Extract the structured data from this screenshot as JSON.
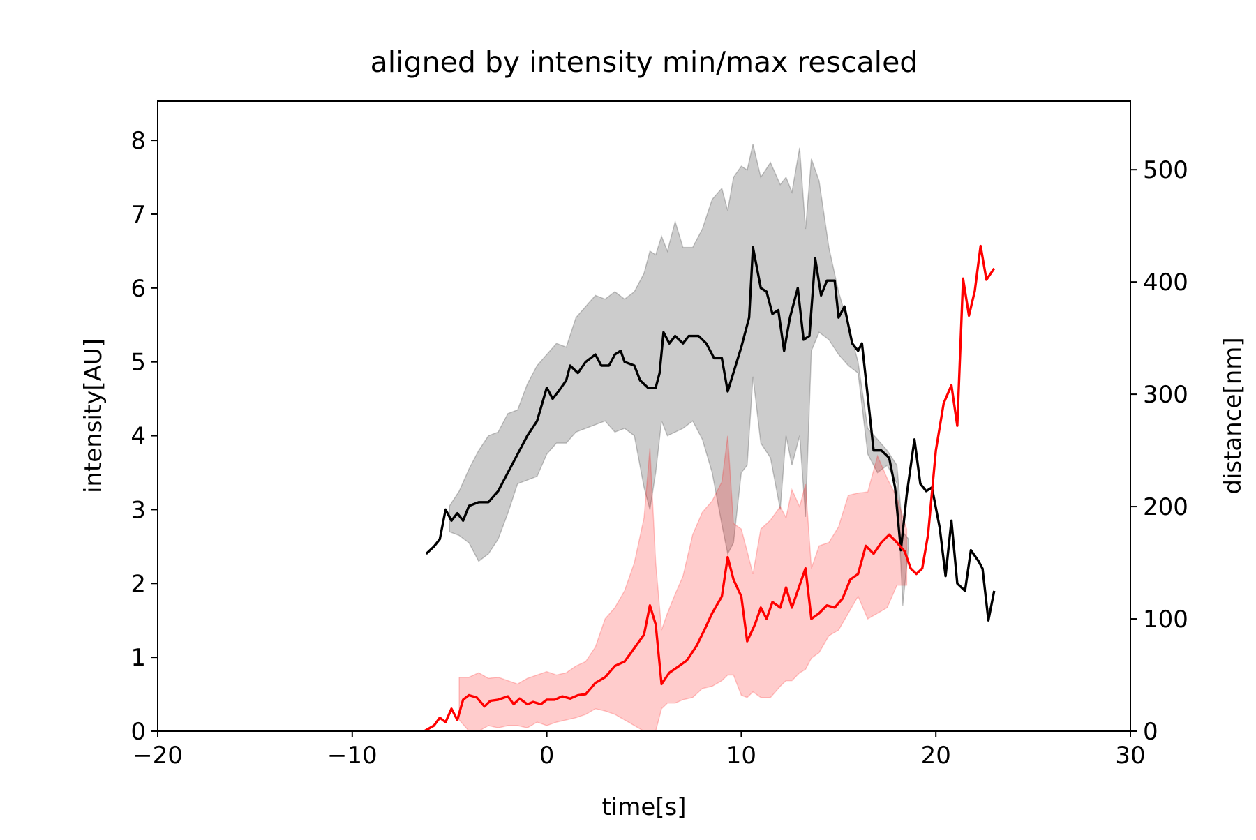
{
  "chart_data": {
    "type": "line",
    "title": "aligned by intensity min/max rescaled",
    "xlabel": "time[s]",
    "ylabel": "intensity[AU]",
    "y2label": "distance[nm]",
    "xlim": [
      -20,
      30
    ],
    "xticks": [
      {
        "value": -20,
        "label": "−20"
      },
      {
        "value": -10,
        "label": "−10"
      },
      0,
      10,
      20,
      30
    ],
    "ylim": [
      0,
      8.53
    ],
    "yticks": [
      0,
      1,
      2,
      3,
      4,
      5,
      6,
      7,
      8
    ],
    "y2lim": [
      0,
      561
    ],
    "y2ticks": [
      0,
      100,
      200,
      300,
      400,
      500
    ],
    "bands": [
      {
        "color": "#000000",
        "alpha": 0.2,
        "x": [
          -5,
          -4.5,
          -4,
          -3.5,
          -3,
          -2.5,
          -2,
          -1.5,
          -1,
          -0.5,
          0,
          0.5,
          1,
          1.5,
          2,
          2.5,
          3,
          3.5,
          4,
          4.5,
          5,
          5.3,
          5.6,
          5.9,
          6.2,
          6.6,
          7,
          7.5,
          8,
          8.5,
          9,
          9.3,
          9.6,
          10,
          10.3,
          10.6,
          11,
          11.5,
          12,
          12.3,
          12.6,
          13,
          13.3,
          13.6,
          14,
          14.5,
          15,
          15.5,
          16,
          16.5,
          17,
          17.5,
          18,
          18.3,
          18.6
        ],
        "upper": [
          3.05,
          3.25,
          3.55,
          3.8,
          4.0,
          4.05,
          4.3,
          4.35,
          4.7,
          4.95,
          5.1,
          5.25,
          5.2,
          5.6,
          5.75,
          5.9,
          5.85,
          5.95,
          5.85,
          5.95,
          6.2,
          6.5,
          6.45,
          6.7,
          6.5,
          6.9,
          6.55,
          6.55,
          6.8,
          7.2,
          7.35,
          7.05,
          7.5,
          7.65,
          7.6,
          7.95,
          7.5,
          7.7,
          7.4,
          7.5,
          7.3,
          7.9,
          6.8,
          7.75,
          7.45,
          6.55,
          5.95,
          5.5,
          5.0,
          4.1,
          3.95,
          3.8,
          3.6,
          2.7,
          2.6
        ],
        "lower": [
          2.7,
          2.65,
          2.55,
          2.3,
          2.4,
          2.6,
          2.95,
          3.35,
          3.4,
          3.45,
          3.75,
          3.9,
          3.9,
          4.05,
          4.1,
          4.15,
          4.2,
          4.05,
          4.1,
          4.0,
          3.3,
          3.0,
          3.5,
          4.2,
          4.0,
          4.05,
          4.1,
          4.2,
          3.95,
          3.5,
          2.8,
          2.4,
          2.55,
          3.5,
          3.6,
          4.8,
          3.9,
          3.7,
          3.0,
          4.0,
          3.6,
          4.0,
          2.9,
          5.15,
          5.4,
          5.3,
          5.1,
          4.95,
          4.85,
          3.75,
          3.5,
          3.6,
          3.35,
          1.7,
          2.5
        ]
      },
      {
        "color": "#ff0000",
        "alpha": 0.2,
        "axis": "y2",
        "x": [
          -4.5,
          -4,
          -3.5,
          -3,
          -2.5,
          -2,
          -1.5,
          -1,
          -0.5,
          0,
          0.5,
          1,
          1.5,
          2,
          2.5,
          3,
          3.5,
          4,
          4.5,
          5,
          5.3,
          5.6,
          5.9,
          6.2,
          6.6,
          7,
          7.5,
          8,
          8.5,
          9,
          9.3,
          9.6,
          10,
          10.3,
          10.6,
          11,
          11.5,
          12,
          12.3,
          12.6,
          13,
          13.3,
          13.6,
          14,
          14.5,
          15,
          15.5,
          16,
          16.5,
          17,
          17.5,
          18,
          18.5
        ],
        "upper": [
          48,
          48,
          52,
          47,
          48,
          45,
          42,
          47,
          50,
          53,
          50,
          52,
          58,
          62,
          75,
          100,
          110,
          125,
          150,
          190,
          252,
          150,
          90,
          105,
          122,
          138,
          175,
          195,
          205,
          222,
          263,
          185,
          180,
          160,
          140,
          180,
          188,
          200,
          190,
          215,
          200,
          220,
          145,
          165,
          168,
          182,
          210,
          212,
          213,
          245,
          225,
          208,
          180
        ],
        "lower": [
          10,
          0,
          0,
          5,
          3,
          5,
          5,
          3,
          8,
          5,
          8,
          10,
          12,
          15,
          20,
          18,
          15,
          10,
          5,
          0,
          0,
          0,
          20,
          25,
          25,
          28,
          30,
          38,
          40,
          45,
          50,
          50,
          32,
          30,
          35,
          30,
          30,
          40,
          45,
          45,
          52,
          55,
          65,
          70,
          85,
          90,
          105,
          120,
          100,
          105,
          110,
          130,
          130
        ]
      }
    ],
    "series": [
      {
        "color": "#000000",
        "x": [
          -6.2,
          -5.8,
          -5.5,
          -5.2,
          -4.9,
          -4.6,
          -4.3,
          -4.0,
          -3.5,
          -3.0,
          -2.5,
          -2.0,
          -1.5,
          -1.0,
          -0.5,
          0,
          0.3,
          0.6,
          1.0,
          1.2,
          1.6,
          2.0,
          2.5,
          2.8,
          3.2,
          3.5,
          3.8,
          4.0,
          4.5,
          4.8,
          5.2,
          5.6,
          5.8,
          6.0,
          6.3,
          6.6,
          7.0,
          7.3,
          7.8,
          8.2,
          8.6,
          9.0,
          9.3,
          10.0,
          10.4,
          10.6,
          11.0,
          11.3,
          11.6,
          11.9,
          12.2,
          12.5,
          12.9,
          13.2,
          13.5,
          13.8,
          14.1,
          14.4,
          14.8,
          15.0,
          15.3,
          15.7,
          16.0,
          16.2,
          16.8,
          17.2,
          17.6,
          17.9,
          18.2,
          18.5,
          18.9,
          19.2,
          19.5,
          19.8,
          20.2,
          20.5,
          20.8,
          21.1,
          21.5,
          21.8,
          22.2,
          22.4,
          22.7,
          23.0
        ],
        "values": [
          2.4,
          2.5,
          2.6,
          3.0,
          2.85,
          2.95,
          2.85,
          3.05,
          3.1,
          3.1,
          3.25,
          3.5,
          3.75,
          4.0,
          4.2,
          4.65,
          4.5,
          4.6,
          4.75,
          4.95,
          4.85,
          5.0,
          5.1,
          4.95,
          4.95,
          5.1,
          5.15,
          5.0,
          4.95,
          4.75,
          4.65,
          4.65,
          4.85,
          5.4,
          5.25,
          5.35,
          5.25,
          5.35,
          5.35,
          5.25,
          5.05,
          5.05,
          4.6,
          5.2,
          5.6,
          6.55,
          6.0,
          5.95,
          5.65,
          5.7,
          5.15,
          5.6,
          6.0,
          5.3,
          5.35,
          6.4,
          5.9,
          6.1,
          6.1,
          5.6,
          5.75,
          5.25,
          5.15,
          5.25,
          3.8,
          3.8,
          3.7,
          3.3,
          2.45,
          3.2,
          3.95,
          3.35,
          3.25,
          3.3,
          2.75,
          2.1,
          2.85,
          2.0,
          1.9,
          2.45,
          2.3,
          2.2,
          1.5,
          1.9
        ]
      },
      {
        "color": "#ff0000",
        "axis": "y2",
        "x": [
          -6.3,
          -5.8,
          -5.5,
          -5.2,
          -4.9,
          -4.6,
          -4.3,
          -4.0,
          -3.6,
          -3.2,
          -2.9,
          -2.5,
          -2.0,
          -1.7,
          -1.4,
          -1.0,
          -0.7,
          -0.3,
          0,
          0.4,
          0.8,
          1.2,
          1.6,
          2.0,
          2.5,
          3.0,
          3.5,
          4.0,
          4.5,
          5.0,
          5.3,
          5.6,
          5.9,
          6.3,
          6.8,
          7.2,
          7.7,
          8.1,
          8.5,
          9.0,
          9.3,
          9.6,
          10.0,
          10.3,
          10.7,
          11.0,
          11.3,
          11.6,
          12.0,
          12.3,
          12.6,
          13.0,
          13.3,
          13.6,
          14.0,
          14.4,
          14.8,
          15.2,
          15.6,
          16.0,
          16.4,
          16.8,
          17.2,
          17.6,
          18.0,
          18.4,
          18.7,
          19.0,
          19.3,
          19.6,
          20.0,
          20.4,
          20.8,
          21.1,
          21.4,
          21.7,
          22.0,
          22.3,
          22.6,
          23.0
        ],
        "values": [
          0,
          5,
          12,
          8,
          20,
          10,
          28,
          32,
          30,
          22,
          27,
          28,
          31,
          24,
          29,
          24,
          26,
          24,
          28,
          28,
          31,
          29,
          32,
          33,
          43,
          48,
          58,
          62,
          74,
          86,
          112,
          95,
          42,
          52,
          58,
          63,
          76,
          90,
          105,
          120,
          155,
          135,
          120,
          80,
          95,
          110,
          100,
          115,
          110,
          128,
          110,
          130,
          145,
          100,
          105,
          112,
          110,
          118,
          135,
          140,
          165,
          158,
          168,
          175,
          168,
          160,
          145,
          140,
          145,
          175,
          250,
          292,
          308,
          272,
          403,
          370,
          392,
          432,
          402,
          412
        ]
      }
    ]
  }
}
